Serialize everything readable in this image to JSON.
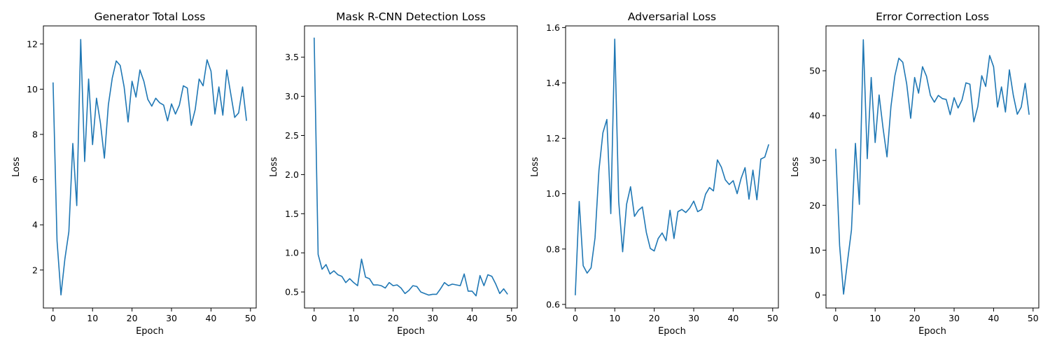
{
  "chart_data": [
    {
      "type": "line",
      "title": "Generator Total Loss",
      "xlabel": "Epoch",
      "ylabel": "Loss",
      "xlim": [
        -2.45,
        51.45
      ],
      "ylim": [
        0.32,
        12.8
      ],
      "xticks": [
        0,
        10,
        20,
        30,
        40,
        50
      ],
      "yticks": [
        2,
        4,
        6,
        8,
        10,
        12
      ],
      "ytick_labels": [
        "2",
        "4",
        "6",
        "8",
        "10",
        "12"
      ],
      "grid": false,
      "color": "#1f77b4",
      "x": [
        0,
        1,
        2,
        3,
        4,
        5,
        6,
        7,
        8,
        9,
        10,
        11,
        12,
        13,
        14,
        15,
        16,
        17,
        18,
        19,
        20,
        21,
        22,
        23,
        24,
        25,
        26,
        27,
        28,
        29,
        30,
        31,
        32,
        33,
        34,
        35,
        36,
        37,
        38,
        39,
        40,
        41,
        42,
        43,
        44,
        45,
        46,
        47,
        48,
        49
      ],
      "values": [
        10.3,
        3.3,
        0.9,
        2.5,
        3.7,
        7.6,
        4.85,
        12.2,
        6.8,
        10.45,
        7.55,
        9.6,
        8.5,
        6.95,
        9.3,
        10.5,
        11.25,
        11.05,
        10.1,
        8.55,
        10.35,
        9.65,
        10.85,
        10.35,
        9.55,
        9.25,
        9.6,
        9.4,
        9.3,
        8.6,
        9.35,
        8.9,
        9.3,
        10.15,
        10.05,
        8.4,
        9.1,
        10.45,
        10.15,
        11.3,
        10.8,
        8.9,
        10.1,
        8.85,
        10.85,
        9.8,
        8.75,
        8.95,
        10.1,
        8.6
      ]
    },
    {
      "type": "line",
      "title": "Mask R-CNN Detection Loss",
      "xlabel": "Epoch",
      "ylabel": "Loss",
      "xlim": [
        -2.45,
        51.45
      ],
      "ylim": [
        0.295,
        3.9
      ],
      "xticks": [
        0,
        10,
        20,
        30,
        40,
        50
      ],
      "yticks": [
        0.5,
        1.0,
        1.5,
        2.0,
        2.5,
        3.0,
        3.5
      ],
      "ytick_labels": [
        "0.5",
        "1.0",
        "1.5",
        "2.0",
        "2.5",
        "3.0",
        "3.5"
      ],
      "grid": false,
      "color": "#1f77b4",
      "x": [
        0,
        1,
        2,
        3,
        4,
        5,
        6,
        7,
        8,
        9,
        10,
        11,
        12,
        13,
        14,
        15,
        16,
        17,
        18,
        19,
        20,
        21,
        22,
        23,
        24,
        25,
        26,
        27,
        28,
        29,
        30,
        31,
        32,
        33,
        34,
        35,
        36,
        37,
        38,
        39,
        40,
        41,
        42,
        43,
        44,
        45,
        46,
        47,
        48,
        49
      ],
      "values": [
        3.75,
        0.98,
        0.79,
        0.85,
        0.73,
        0.77,
        0.72,
        0.7,
        0.62,
        0.67,
        0.62,
        0.58,
        0.92,
        0.69,
        0.67,
        0.59,
        0.59,
        0.58,
        0.55,
        0.62,
        0.58,
        0.59,
        0.55,
        0.48,
        0.52,
        0.58,
        0.57,
        0.5,
        0.48,
        0.46,
        0.47,
        0.47,
        0.54,
        0.62,
        0.58,
        0.6,
        0.59,
        0.58,
        0.73,
        0.51,
        0.51,
        0.45,
        0.71,
        0.58,
        0.72,
        0.7,
        0.6,
        0.48,
        0.54,
        0.47
      ]
    },
    {
      "type": "line",
      "title": "Adversarial Loss",
      "xlabel": "Epoch",
      "ylabel": "Loss",
      "xlim": [
        -2.45,
        51.45
      ],
      "ylim": [
        0.587,
        1.606
      ],
      "xticks": [
        0,
        10,
        20,
        30,
        40,
        50
      ],
      "yticks": [
        0.6,
        0.8,
        1.0,
        1.2,
        1.4,
        1.6
      ],
      "ytick_labels": [
        "0.6",
        "0.8",
        "1.0",
        "1.2",
        "1.4",
        "1.6"
      ],
      "grid": false,
      "color": "#1f77b4",
      "x": [
        0,
        1,
        2,
        3,
        4,
        5,
        6,
        7,
        8,
        9,
        10,
        11,
        12,
        13,
        14,
        15,
        16,
        17,
        18,
        19,
        20,
        21,
        22,
        23,
        24,
        25,
        26,
        27,
        28,
        29,
        30,
        31,
        32,
        33,
        34,
        35,
        36,
        37,
        38,
        39,
        40,
        41,
        42,
        43,
        44,
        45,
        46,
        47,
        48,
        49
      ],
      "values": [
        0.633,
        0.972,
        0.74,
        0.713,
        0.732,
        0.84,
        1.085,
        1.22,
        1.268,
        0.928,
        1.558,
        0.972,
        0.79,
        0.962,
        1.025,
        0.918,
        0.94,
        0.952,
        0.86,
        0.802,
        0.793,
        0.838,
        0.858,
        0.83,
        0.94,
        0.838,
        0.935,
        0.943,
        0.932,
        0.948,
        0.973,
        0.935,
        0.943,
        0.998,
        1.022,
        1.01,
        1.122,
        1.096,
        1.05,
        1.033,
        1.047,
        1.0,
        1.055,
        1.094,
        0.98,
        1.085,
        0.978,
        1.125,
        1.132,
        1.178
      ]
    },
    {
      "type": "line",
      "title": "Error Correction Loss",
      "xlabel": "Epoch",
      "ylabel": "Loss",
      "xlim": [
        -2.45,
        51.45
      ],
      "ylim": [
        -2.9,
        60.0
      ],
      "xticks": [
        0,
        10,
        20,
        30,
        40,
        50
      ],
      "yticks": [
        0,
        10,
        20,
        30,
        40,
        50
      ],
      "ytick_labels": [
        "0",
        "10",
        "20",
        "30",
        "40",
        "50"
      ],
      "grid": false,
      "color": "#1f77b4",
      "x": [
        0,
        1,
        2,
        3,
        4,
        5,
        6,
        7,
        8,
        9,
        10,
        11,
        12,
        13,
        14,
        15,
        16,
        17,
        18,
        19,
        20,
        21,
        22,
        23,
        24,
        25,
        26,
        27,
        28,
        29,
        30,
        31,
        32,
        33,
        34,
        35,
        36,
        37,
        38,
        39,
        40,
        41,
        42,
        43,
        44,
        45,
        46,
        47,
        48,
        49
      ],
      "values": [
        32.6,
        11.0,
        0.2,
        7.5,
        14.5,
        33.8,
        20.2,
        56.9,
        30.4,
        48.5,
        34.0,
        44.6,
        37.2,
        30.8,
        42.0,
        48.9,
        52.8,
        51.9,
        47.0,
        39.4,
        48.5,
        45.0,
        50.9,
        48.8,
        44.5,
        43.0,
        44.5,
        43.8,
        43.6,
        40.2,
        44.0,
        41.7,
        43.5,
        47.3,
        47.0,
        38.6,
        42.0,
        48.9,
        46.5,
        53.4,
        50.9,
        41.9,
        46.4,
        40.8,
        50.2,
        44.5,
        40.3,
        41.9,
        47.2,
        40.2
      ]
    }
  ]
}
